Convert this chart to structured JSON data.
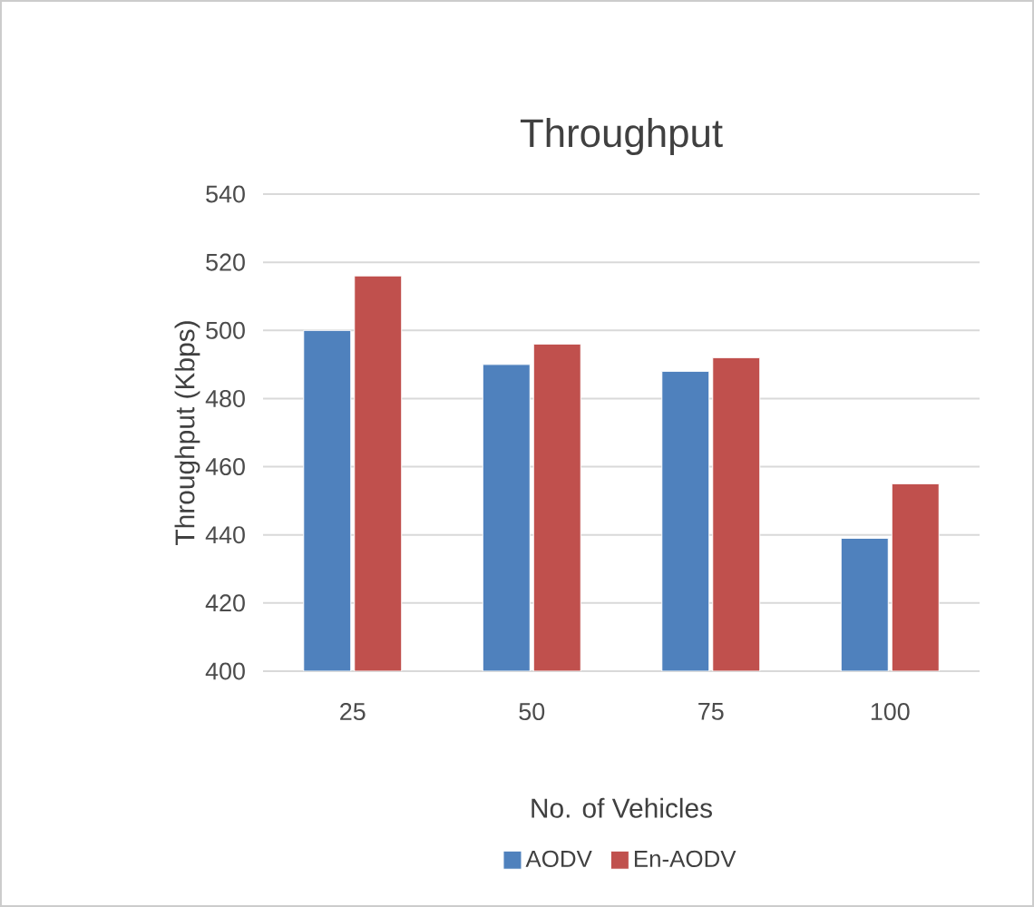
{
  "chart_data": {
    "type": "bar",
    "title": "Throughput",
    "xlabel": "No. of Vehicles",
    "ylabel": "Throughput (Kbps)",
    "categories": [
      "25",
      "50",
      "75",
      "100"
    ],
    "series": [
      {
        "name": "AODV",
        "color": "#4f81bd",
        "values": [
          500,
          490,
          488,
          439
        ]
      },
      {
        "name": "En-AODV",
        "color": "#c0504d",
        "values": [
          516,
          496,
          492,
          455
        ]
      }
    ],
    "ylim": [
      400,
      540
    ],
    "yticks": [
      400,
      420,
      440,
      460,
      480,
      500,
      520,
      540
    ],
    "grid": "y",
    "legend": "bottom"
  }
}
